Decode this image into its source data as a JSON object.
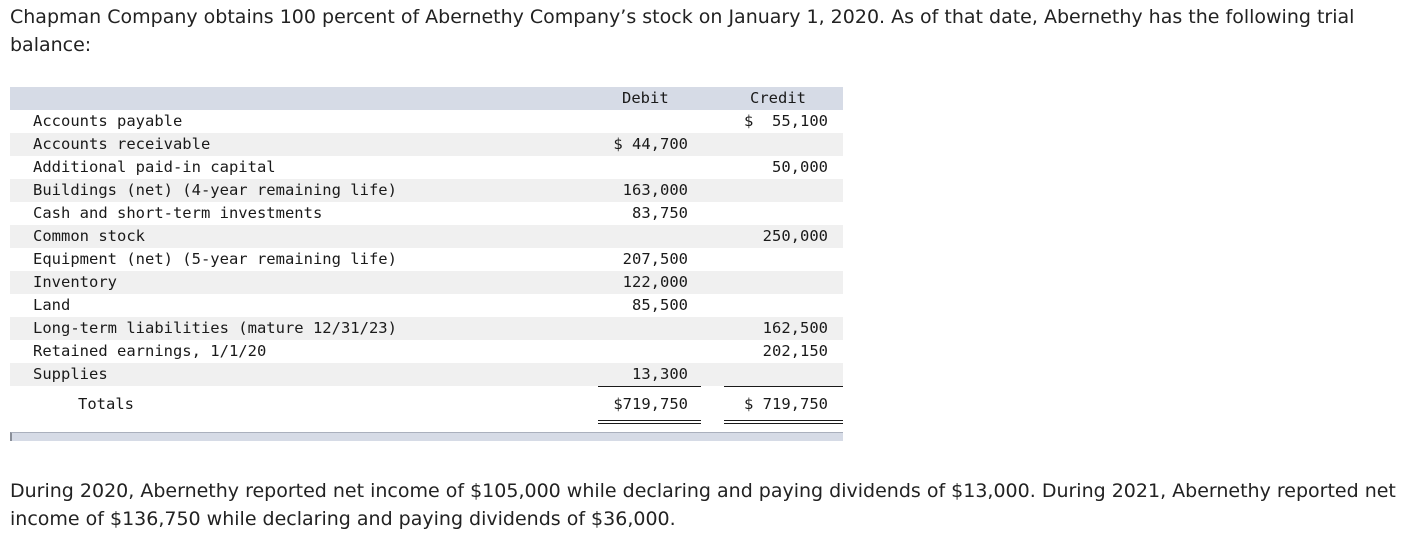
{
  "intro_text": "Chapman Company obtains 100 percent of Abernethy Company’s stock on January 1, 2020. As of that date, Abernethy has the following trial balance:",
  "table": {
    "headers": {
      "debit": "Debit",
      "credit": "Credit"
    },
    "rows": [
      {
        "label": "Accounts payable",
        "debit": "",
        "credit": "$  55,100"
      },
      {
        "label": "Accounts receivable",
        "debit": "$ 44,700",
        "credit": ""
      },
      {
        "label": "Additional paid-in capital",
        "debit": "",
        "credit": "50,000"
      },
      {
        "label": "Buildings (net) (4-year remaining life)",
        "debit": "163,000",
        "credit": ""
      },
      {
        "label": "Cash and short-term investments",
        "debit": "83,750",
        "credit": ""
      },
      {
        "label": "Common stock",
        "debit": "",
        "credit": "250,000"
      },
      {
        "label": "Equipment (net) (5-year remaining life)",
        "debit": "207,500",
        "credit": ""
      },
      {
        "label": "Inventory",
        "debit": "122,000",
        "credit": ""
      },
      {
        "label": "Land",
        "debit": "85,500",
        "credit": ""
      },
      {
        "label": "Long-term liabilities (mature 12/31/23)",
        "debit": "",
        "credit": "162,500"
      },
      {
        "label": "Retained earnings, 1/1/20",
        "debit": "",
        "credit": "202,150"
      },
      {
        "label": "Supplies",
        "debit": "13,300",
        "credit": ""
      }
    ],
    "totals": {
      "label": "Totals",
      "debit": "$719,750",
      "credit": "$ 719,750"
    }
  },
  "outro_text": "During 2020, Abernethy reported net income of $105,000 while declaring and paying dividends of $13,000. During 2021, Abernethy reported net income of $136,750 while declaring and paying dividends  of $36,000."
}
